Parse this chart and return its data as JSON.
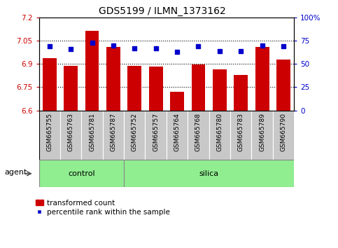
{
  "title": "GDS5199 / ILMN_1373162",
  "samples": [
    "GSM665755",
    "GSM665763",
    "GSM665781",
    "GSM665787",
    "GSM665752",
    "GSM665757",
    "GSM665764",
    "GSM665768",
    "GSM665780",
    "GSM665783",
    "GSM665789",
    "GSM665790"
  ],
  "bar_values": [
    6.935,
    6.885,
    7.115,
    7.01,
    6.885,
    6.882,
    6.72,
    6.895,
    6.865,
    6.83,
    7.01,
    6.93
  ],
  "dot_values": [
    69,
    66,
    73,
    70,
    67,
    67,
    63,
    69,
    64,
    64,
    70,
    69
  ],
  "bar_color": "#cc0000",
  "dot_color": "#0000cc",
  "ylim_left": [
    6.6,
    7.2
  ],
  "ylim_right": [
    0,
    100
  ],
  "yticks_left": [
    6.6,
    6.75,
    6.9,
    7.05,
    7.2
  ],
  "yticks_right": [
    0,
    25,
    50,
    75,
    100
  ],
  "ytick_labels_left": [
    "6.6",
    "6.75",
    "6.9",
    "7.05",
    "7.2"
  ],
  "ytick_labels_right": [
    "0",
    "25",
    "50",
    "75",
    "100%"
  ],
  "hlines": [
    6.75,
    6.9,
    7.05
  ],
  "control_samples": 4,
  "control_label": "control",
  "silica_label": "silica",
  "agent_label": "agent",
  "legend_bar_label": "transformed count",
  "legend_dot_label": "percentile rank within the sample",
  "bg_color": "#ffffff",
  "plot_bg_color": "#ffffff",
  "tick_area_color": "#c8c8c8",
  "group_box_color": "#90ee90",
  "title_fontsize": 10,
  "tick_fontsize": 7.5,
  "label_fontsize": 6.5
}
